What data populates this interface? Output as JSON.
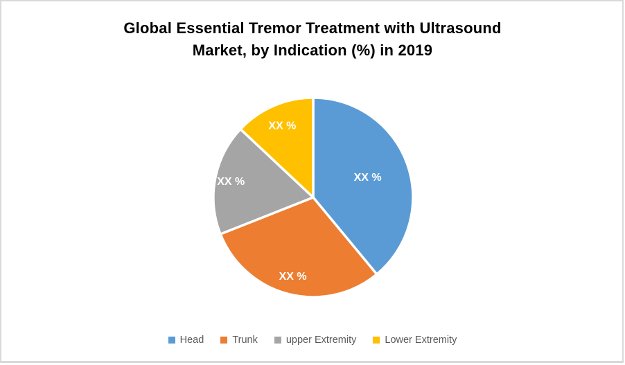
{
  "frame": {
    "background_color": "#FFFFFF",
    "border_color": "#D9D9D9"
  },
  "chart_data": {
    "type": "pie",
    "title": "Global Essential Tremor Treatment with Ultrasound Market, by Indication (%) in 2019",
    "title_lines": [
      "Global Essential Tremor Treatment with Ultrasound",
      "Market, by Indication (%) in 2019"
    ],
    "title_color": "#000000",
    "categories": [
      "Head",
      "Trunk",
      "upper Extremity",
      "Lower Extremity"
    ],
    "slices": [
      {
        "label": "Head",
        "data_label": "XX %",
        "color": "#5B9BD5",
        "estimated_pct": 39
      },
      {
        "label": "Trunk",
        "data_label": "XX %",
        "color": "#ED7D31",
        "estimated_pct": 30
      },
      {
        "label": "upper Extremity",
        "data_label": "XX %",
        "color": "#A5A5A5",
        "estimated_pct": 18
      },
      {
        "label": "Lower Extremity",
        "data_label": "XX %",
        "color": "#FFC000",
        "estimated_pct": 13
      }
    ],
    "values_note": "data labels are masked on screen as XX %",
    "start_angle_deg": 0,
    "direction": "clockwise",
    "slice_border_color": "#FFFFFF",
    "data_label_color": "#FFFFFF",
    "legend_position": "bottom",
    "legend_text_color": "#595959"
  }
}
